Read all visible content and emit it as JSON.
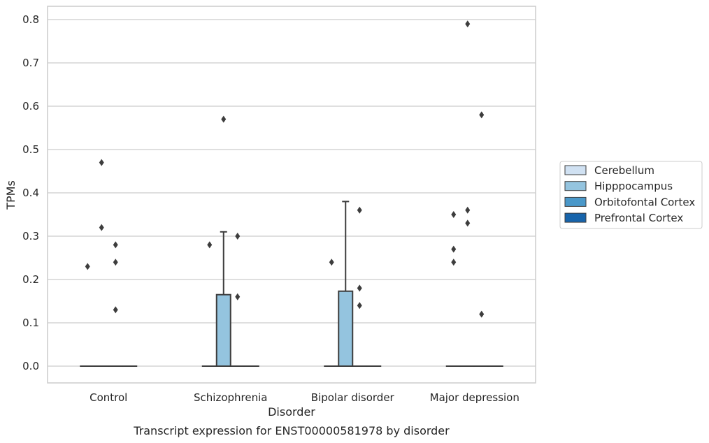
{
  "chart_data": {
    "type": "box",
    "xlabel": "Disorder",
    "ylabel": "TPMs",
    "caption": "Transcript expression for ENST00000581978 by disorder",
    "ylim": [
      -0.04,
      0.83
    ],
    "yticks": [
      0.0,
      0.1,
      0.2,
      0.3,
      0.4,
      0.5,
      0.6,
      0.7,
      0.8
    ],
    "ytick_labels": [
      "0.0",
      "0.1",
      "0.2",
      "0.3",
      "0.4",
      "0.5",
      "0.6",
      "0.7",
      "0.8"
    ],
    "grid": true,
    "legend_position": "right",
    "categories": [
      "Control",
      "Schizophrenia",
      "Bipolar disorder",
      "Major depression"
    ],
    "series": [
      {
        "name": "Cerebellum",
        "color": "#d0e1f2",
        "boxes": [
          {
            "q1": 0.0,
            "median": 0.0,
            "q3": 0.0,
            "whislo": 0.0,
            "whishi": 0.0,
            "fliers": [
              0.23
            ]
          },
          {
            "q1": 0.0,
            "median": 0.0,
            "q3": 0.0,
            "whislo": 0.0,
            "whishi": 0.0,
            "fliers": [
              0.28
            ]
          },
          {
            "q1": 0.0,
            "median": 0.0,
            "q3": 0.0,
            "whislo": 0.0,
            "whishi": 0.0,
            "fliers": [
              0.24
            ]
          },
          {
            "q1": 0.0,
            "median": 0.0,
            "q3": 0.0,
            "whislo": 0.0,
            "whishi": 0.0,
            "fliers": [
              0.27,
              0.24,
              0.35
            ]
          }
        ]
      },
      {
        "name": "Hipppocampus",
        "color": "#94c4df",
        "boxes": [
          {
            "q1": 0.0,
            "median": 0.0,
            "q3": 0.0,
            "whislo": 0.0,
            "whishi": 0.0,
            "fliers": [
              0.47,
              0.32
            ]
          },
          {
            "q1": 0.0,
            "median": 0.0,
            "q3": 0.165,
            "whislo": 0.0,
            "whishi": 0.31,
            "fliers": [
              0.57
            ]
          },
          {
            "q1": 0.0,
            "median": 0.0,
            "q3": 0.173,
            "whislo": 0.0,
            "whishi": 0.38,
            "fliers": []
          },
          {
            "q1": 0.0,
            "median": 0.0,
            "q3": 0.0,
            "whislo": 0.0,
            "whishi": 0.0,
            "fliers": [
              0.79,
              0.36,
              0.33
            ]
          }
        ]
      },
      {
        "name": "Orbitofontal Cortex",
        "color": "#4a98c9",
        "boxes": [
          {
            "q1": 0.0,
            "median": 0.0,
            "q3": 0.0,
            "whislo": 0.0,
            "whishi": 0.0,
            "fliers": [
              0.28,
              0.24,
              0.13
            ]
          },
          {
            "q1": 0.0,
            "median": 0.0,
            "q3": 0.0,
            "whislo": 0.0,
            "whishi": 0.0,
            "fliers": [
              0.3,
              0.16
            ]
          },
          {
            "q1": 0.0,
            "median": 0.0,
            "q3": 0.0,
            "whislo": 0.0,
            "whishi": 0.0,
            "fliers": [
              0.36,
              0.18,
              0.14
            ]
          },
          {
            "q1": 0.0,
            "median": 0.0,
            "q3": 0.0,
            "whislo": 0.0,
            "whishi": 0.0,
            "fliers": [
              0.58,
              0.12
            ]
          }
        ]
      },
      {
        "name": "Prefrontal Cortex",
        "color": "#1764ab",
        "boxes": [
          {
            "q1": 0.0,
            "median": 0.0,
            "q3": 0.0,
            "whislo": 0.0,
            "whishi": 0.0,
            "fliers": []
          },
          {
            "q1": 0.0,
            "median": 0.0,
            "q3": 0.0,
            "whislo": 0.0,
            "whishi": 0.0,
            "fliers": []
          },
          {
            "q1": 0.0,
            "median": 0.0,
            "q3": 0.0,
            "whislo": 0.0,
            "whishi": 0.0,
            "fliers": []
          },
          {
            "q1": 0.0,
            "median": 0.0,
            "q3": 0.0,
            "whislo": 0.0,
            "whishi": 0.0,
            "fliers": []
          }
        ]
      }
    ]
  }
}
